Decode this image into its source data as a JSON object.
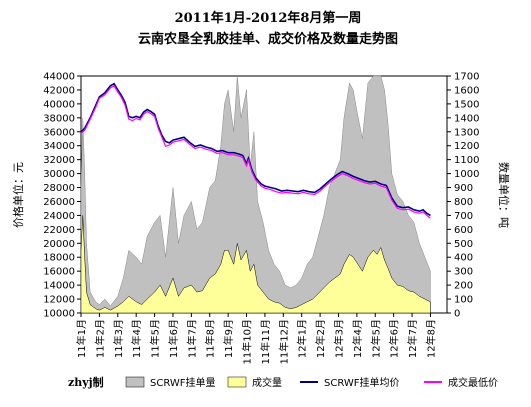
{
  "chart_data": {
    "type": "line",
    "title": "2011年1月-2012年8月第一周",
    "subtitle": "云南农垦全乳胶挂单、成交价格及数量走势图",
    "ylabel_left": "价格单位：元",
    "ylabel_right": "数量单位：吨",
    "ylim_left": [
      10000,
      44000
    ],
    "ylim_right": [
      0,
      1700
    ],
    "yticks_left": [
      "10000",
      "12000",
      "14000",
      "16000",
      "18000",
      "20000",
      "22000",
      "24000",
      "26000",
      "28000",
      "30000",
      "32000",
      "34000",
      "36000",
      "38000",
      "40000",
      "42000",
      "44000"
    ],
    "yticks_right": [
      "0",
      "100",
      "200",
      "300",
      "400",
      "500",
      "600",
      "700",
      "800",
      "900",
      "1000",
      "1100",
      "1200",
      "1300",
      "1400",
      "1500",
      "1600",
      "1700"
    ],
    "categories": [
      "11年1月",
      "11年2月",
      "11年3月",
      "11年4月",
      "11年5月",
      "11年6月",
      "11年7月",
      "11年8月",
      "11年9月",
      "11年10月",
      "11年11月",
      "11年12月",
      "12年1月",
      "12年2月",
      "12年3月",
      "12年4月",
      "12年5月",
      "12年6月",
      "12年7月",
      "12年8月"
    ],
    "months": [
      1,
      2,
      3,
      4,
      5,
      6,
      7,
      8,
      9,
      10,
      11,
      12,
      13,
      14,
      15,
      16,
      17,
      18,
      19,
      20
    ],
    "series": [
      {
        "name": "SCRWF挂单均价",
        "axis": "left",
        "color": "#000080",
        "points": [
          [
            1.0,
            36000
          ],
          [
            1.2,
            36500
          ],
          [
            1.5,
            38000
          ],
          [
            1.8,
            39800
          ],
          [
            2.0,
            41000
          ],
          [
            2.3,
            41600
          ],
          [
            2.6,
            42600
          ],
          [
            2.8,
            42900
          ],
          [
            3.0,
            42000
          ],
          [
            3.2,
            41200
          ],
          [
            3.4,
            40200
          ],
          [
            3.6,
            38200
          ],
          [
            3.8,
            38000
          ],
          [
            4.0,
            38200
          ],
          [
            4.2,
            38000
          ],
          [
            4.4,
            38800
          ],
          [
            4.6,
            39200
          ],
          [
            4.8,
            38900
          ],
          [
            5.0,
            38500
          ],
          [
            5.2,
            36800
          ],
          [
            5.4,
            35500
          ],
          [
            5.6,
            34600
          ],
          [
            5.8,
            34400
          ],
          [
            6.0,
            34800
          ],
          [
            6.3,
            35000
          ],
          [
            6.6,
            35200
          ],
          [
            6.9,
            34500
          ],
          [
            7.2,
            33900
          ],
          [
            7.5,
            34100
          ],
          [
            7.8,
            33800
          ],
          [
            8.1,
            33600
          ],
          [
            8.4,
            33200
          ],
          [
            8.7,
            33300
          ],
          [
            9.0,
            33000
          ],
          [
            9.3,
            33000
          ],
          [
            9.6,
            32800
          ],
          [
            9.8,
            32600
          ],
          [
            10.0,
            31400
          ],
          [
            10.1,
            32200
          ],
          [
            10.3,
            30500
          ],
          [
            10.5,
            29400
          ],
          [
            10.8,
            28500
          ],
          [
            11.0,
            28200
          ],
          [
            11.3,
            28000
          ],
          [
            11.6,
            27800
          ],
          [
            11.9,
            27500
          ],
          [
            12.2,
            27600
          ],
          [
            12.5,
            27500
          ],
          [
            12.8,
            27400
          ],
          [
            13.1,
            27600
          ],
          [
            13.4,
            27400
          ],
          [
            13.7,
            27300
          ],
          [
            14.0,
            27800
          ],
          [
            14.3,
            28500
          ],
          [
            14.6,
            29200
          ],
          [
            14.9,
            29800
          ],
          [
            15.2,
            30300
          ],
          [
            15.5,
            30000
          ],
          [
            15.8,
            29600
          ],
          [
            16.1,
            29300
          ],
          [
            16.4,
            29000
          ],
          [
            16.7,
            28800
          ],
          [
            17.0,
            28900
          ],
          [
            17.3,
            28500
          ],
          [
            17.6,
            28300
          ],
          [
            17.9,
            26500
          ],
          [
            18.2,
            25300
          ],
          [
            18.5,
            25100
          ],
          [
            18.8,
            25200
          ],
          [
            19.1,
            24800
          ],
          [
            19.4,
            24600
          ],
          [
            19.6,
            24800
          ],
          [
            19.8,
            24300
          ],
          [
            20.0,
            24000
          ]
        ]
      },
      {
        "name": "成交最低价",
        "axis": "left",
        "color": "#ff00ff",
        "points": [
          [
            1.0,
            35800
          ],
          [
            1.2,
            36200
          ],
          [
            1.5,
            37800
          ],
          [
            1.8,
            39500
          ],
          [
            2.0,
            40800
          ],
          [
            2.3,
            41300
          ],
          [
            2.6,
            42300
          ],
          [
            2.8,
            42600
          ],
          [
            3.0,
            41700
          ],
          [
            3.2,
            40900
          ],
          [
            3.4,
            39800
          ],
          [
            3.6,
            37800
          ],
          [
            3.8,
            37600
          ],
          [
            4.0,
            37900
          ],
          [
            4.2,
            37700
          ],
          [
            4.4,
            38500
          ],
          [
            4.6,
            38900
          ],
          [
            4.8,
            38600
          ],
          [
            5.0,
            38200
          ],
          [
            5.2,
            36500
          ],
          [
            5.4,
            35200
          ],
          [
            5.6,
            33900
          ],
          [
            5.8,
            34100
          ],
          [
            6.0,
            34500
          ],
          [
            6.3,
            34700
          ],
          [
            6.6,
            34900
          ],
          [
            6.9,
            34200
          ],
          [
            7.2,
            33600
          ],
          [
            7.5,
            33800
          ],
          [
            7.8,
            33500
          ],
          [
            8.1,
            33300
          ],
          [
            8.4,
            32900
          ],
          [
            8.7,
            33000
          ],
          [
            9.0,
            32700
          ],
          [
            9.3,
            32700
          ],
          [
            9.6,
            32500
          ],
          [
            9.8,
            32300
          ],
          [
            10.0,
            31100
          ],
          [
            10.1,
            31900
          ],
          [
            10.3,
            30200
          ],
          [
            10.5,
            29100
          ],
          [
            10.8,
            28200
          ],
          [
            11.0,
            27900
          ],
          [
            11.3,
            27700
          ],
          [
            11.6,
            27400
          ],
          [
            11.9,
            27200
          ],
          [
            12.2,
            27300
          ],
          [
            12.5,
            27200
          ],
          [
            12.8,
            27100
          ],
          [
            13.1,
            27300
          ],
          [
            13.4,
            27100
          ],
          [
            13.7,
            27000
          ],
          [
            14.0,
            27500
          ],
          [
            14.3,
            28200
          ],
          [
            14.6,
            28900
          ],
          [
            14.9,
            29500
          ],
          [
            15.2,
            30000
          ],
          [
            15.5,
            29700
          ],
          [
            15.8,
            29300
          ],
          [
            16.1,
            29000
          ],
          [
            16.4,
            28700
          ],
          [
            16.7,
            28500
          ],
          [
            17.0,
            28600
          ],
          [
            17.3,
            28200
          ],
          [
            17.6,
            28000
          ],
          [
            17.9,
            26200
          ],
          [
            18.2,
            25000
          ],
          [
            18.5,
            24800
          ],
          [
            18.8,
            24900
          ],
          [
            19.1,
            24500
          ],
          [
            19.4,
            24300
          ],
          [
            19.6,
            24500
          ],
          [
            19.8,
            24000
          ],
          [
            20.0,
            23600
          ]
        ]
      },
      {
        "name": "SCRWF挂单量",
        "axis": "right",
        "color": "#c0c0c0",
        "points": [
          [
            1.0,
            900
          ],
          [
            1.1,
            1400
          ],
          [
            1.2,
            1000
          ],
          [
            1.3,
            500
          ],
          [
            1.5,
            150
          ],
          [
            1.8,
            80
          ],
          [
            2.0,
            60
          ],
          [
            2.3,
            100
          ],
          [
            2.6,
            50
          ],
          [
            3.0,
            120
          ],
          [
            3.3,
            250
          ],
          [
            3.6,
            450
          ],
          [
            4.0,
            400
          ],
          [
            4.3,
            350
          ],
          [
            4.6,
            550
          ],
          [
            5.0,
            650
          ],
          [
            5.3,
            700
          ],
          [
            5.6,
            400
          ],
          [
            6.0,
            900
          ],
          [
            6.3,
            500
          ],
          [
            6.6,
            700
          ],
          [
            7.0,
            800
          ],
          [
            7.3,
            600
          ],
          [
            7.6,
            650
          ],
          [
            8.0,
            900
          ],
          [
            8.3,
            950
          ],
          [
            8.6,
            1200
          ],
          [
            8.8,
            1500
          ],
          [
            9.0,
            1600
          ],
          [
            9.3,
            1300
          ],
          [
            9.5,
            1800
          ],
          [
            9.7,
            1400
          ],
          [
            10.0,
            1600
          ],
          [
            10.2,
            1050
          ],
          [
            10.4,
            1300
          ],
          [
            10.6,
            800
          ],
          [
            10.9,
            650
          ],
          [
            11.2,
            450
          ],
          [
            11.5,
            350
          ],
          [
            11.8,
            300
          ],
          [
            12.1,
            200
          ],
          [
            12.4,
            180
          ],
          [
            12.7,
            200
          ],
          [
            13.0,
            250
          ],
          [
            13.3,
            350
          ],
          [
            13.6,
            400
          ],
          [
            13.9,
            550
          ],
          [
            14.2,
            700
          ],
          [
            14.5,
            900
          ],
          [
            14.8,
            1000
          ],
          [
            15.1,
            1100
          ],
          [
            15.3,
            1400
          ],
          [
            15.6,
            1650
          ],
          [
            15.8,
            1600
          ],
          [
            16.0,
            1450
          ],
          [
            16.3,
            1250
          ],
          [
            16.6,
            1650
          ],
          [
            16.9,
            1900
          ],
          [
            17.1,
            1700
          ],
          [
            17.3,
            1950
          ],
          [
            17.5,
            1600
          ],
          [
            17.7,
            1350
          ],
          [
            17.9,
            1000
          ],
          [
            18.2,
            850
          ],
          [
            18.5,
            800
          ],
          [
            18.8,
            700
          ],
          [
            19.1,
            650
          ],
          [
            19.4,
            500
          ],
          [
            19.7,
            400
          ],
          [
            20.0,
            300
          ]
        ]
      },
      {
        "name": "成交量",
        "axis": "right",
        "color": "#ffff99",
        "points": [
          [
            1.0,
            450
          ],
          [
            1.1,
            700
          ],
          [
            1.2,
            400
          ],
          [
            1.3,
            150
          ],
          [
            1.5,
            60
          ],
          [
            1.8,
            30
          ],
          [
            2.0,
            20
          ],
          [
            2.3,
            40
          ],
          [
            2.6,
            20
          ],
          [
            3.0,
            50
          ],
          [
            3.3,
            80
          ],
          [
            3.6,
            120
          ],
          [
            4.0,
            80
          ],
          [
            4.3,
            60
          ],
          [
            4.6,
            100
          ],
          [
            5.0,
            150
          ],
          [
            5.3,
            200
          ],
          [
            5.6,
            120
          ],
          [
            6.0,
            250
          ],
          [
            6.3,
            120
          ],
          [
            6.6,
            180
          ],
          [
            7.0,
            200
          ],
          [
            7.3,
            150
          ],
          [
            7.6,
            160
          ],
          [
            8.0,
            250
          ],
          [
            8.3,
            280
          ],
          [
            8.6,
            350
          ],
          [
            8.8,
            450
          ],
          [
            9.0,
            450
          ],
          [
            9.3,
            350
          ],
          [
            9.5,
            500
          ],
          [
            9.7,
            380
          ],
          [
            10.0,
            450
          ],
          [
            10.2,
            300
          ],
          [
            10.4,
            350
          ],
          [
            10.6,
            200
          ],
          [
            10.9,
            150
          ],
          [
            11.2,
            100
          ],
          [
            11.5,
            80
          ],
          [
            11.8,
            70
          ],
          [
            12.1,
            40
          ],
          [
            12.4,
            30
          ],
          [
            12.7,
            40
          ],
          [
            13.0,
            60
          ],
          [
            13.3,
            80
          ],
          [
            13.6,
            100
          ],
          [
            13.9,
            140
          ],
          [
            14.2,
            180
          ],
          [
            14.5,
            220
          ],
          [
            14.8,
            250
          ],
          [
            15.1,
            280
          ],
          [
            15.3,
            350
          ],
          [
            15.6,
            420
          ],
          [
            15.8,
            400
          ],
          [
            16.0,
            360
          ],
          [
            16.3,
            300
          ],
          [
            16.6,
            400
          ],
          [
            16.9,
            450
          ],
          [
            17.1,
            420
          ],
          [
            17.3,
            470
          ],
          [
            17.5,
            380
          ],
          [
            17.7,
            320
          ],
          [
            17.9,
            250
          ],
          [
            18.2,
            200
          ],
          [
            18.5,
            190
          ],
          [
            18.8,
            160
          ],
          [
            19.1,
            150
          ],
          [
            19.4,
            120
          ],
          [
            19.7,
            100
          ],
          [
            20.0,
            80
          ]
        ]
      }
    ],
    "legend_placement": "bottom"
  },
  "watermark": "zhyj制"
}
